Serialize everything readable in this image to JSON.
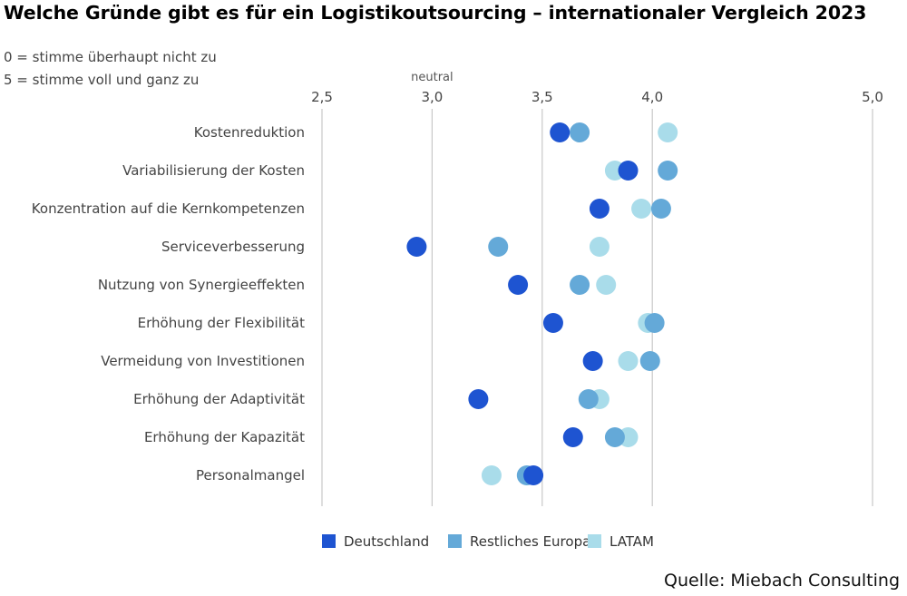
{
  "title": "Welche Gründe gibt es für ein Logistikoutsourcing – internationaler Vergleich 2023",
  "scale_note": [
    "0 = stimme überhaupt nicht zu",
    "5 = stimme voll und ganz zu"
  ],
  "source": "Quelle: Miebach Consulting",
  "chart_data": {
    "type": "scatter",
    "orientation": "horizontal dot plot",
    "categories": [
      "Kostenreduktion",
      "Variabilisierung der Kosten",
      "Konzentration auf die Kernkompetenzen",
      "Serviceverbesserung",
      "Nutzung von Synergieeffekten",
      "Erhöhung der Flexibilität",
      "Vermeidung von Investitionen",
      "Erhöhung der Adaptivität",
      "Erhöhung der Kapazität",
      "Personalmangel"
    ],
    "series": [
      {
        "name": "LATAM",
        "color": "#a9dcea",
        "values": [
          4.07,
          3.83,
          3.95,
          3.76,
          3.79,
          3.98,
          3.89,
          3.76,
          3.89,
          3.27
        ]
      },
      {
        "name": "Restliches Europa",
        "color": "#64a9d8",
        "values": [
          3.67,
          4.07,
          4.04,
          3.3,
          3.67,
          4.01,
          3.99,
          3.71,
          3.83,
          3.43
        ]
      },
      {
        "name": "Deutschland",
        "color": "#1e54d1",
        "values": [
          3.58,
          3.89,
          3.76,
          2.93,
          3.39,
          3.55,
          3.73,
          3.21,
          3.64,
          3.46
        ]
      }
    ],
    "legend_order": [
      "Deutschland",
      "Restliches Europa",
      "LATAM"
    ],
    "x_ticks": [
      "2,5",
      "3,0",
      "3,5",
      "4,0",
      "5,0"
    ],
    "x_tick_values": [
      2.5,
      3.0,
      3.5,
      4.0,
      5.0
    ],
    "xlim": [
      2.5,
      5.0
    ],
    "neutral_label": "neutral",
    "neutral_value": 3.0,
    "grid": "vertical",
    "legend_position": "bottom"
  }
}
